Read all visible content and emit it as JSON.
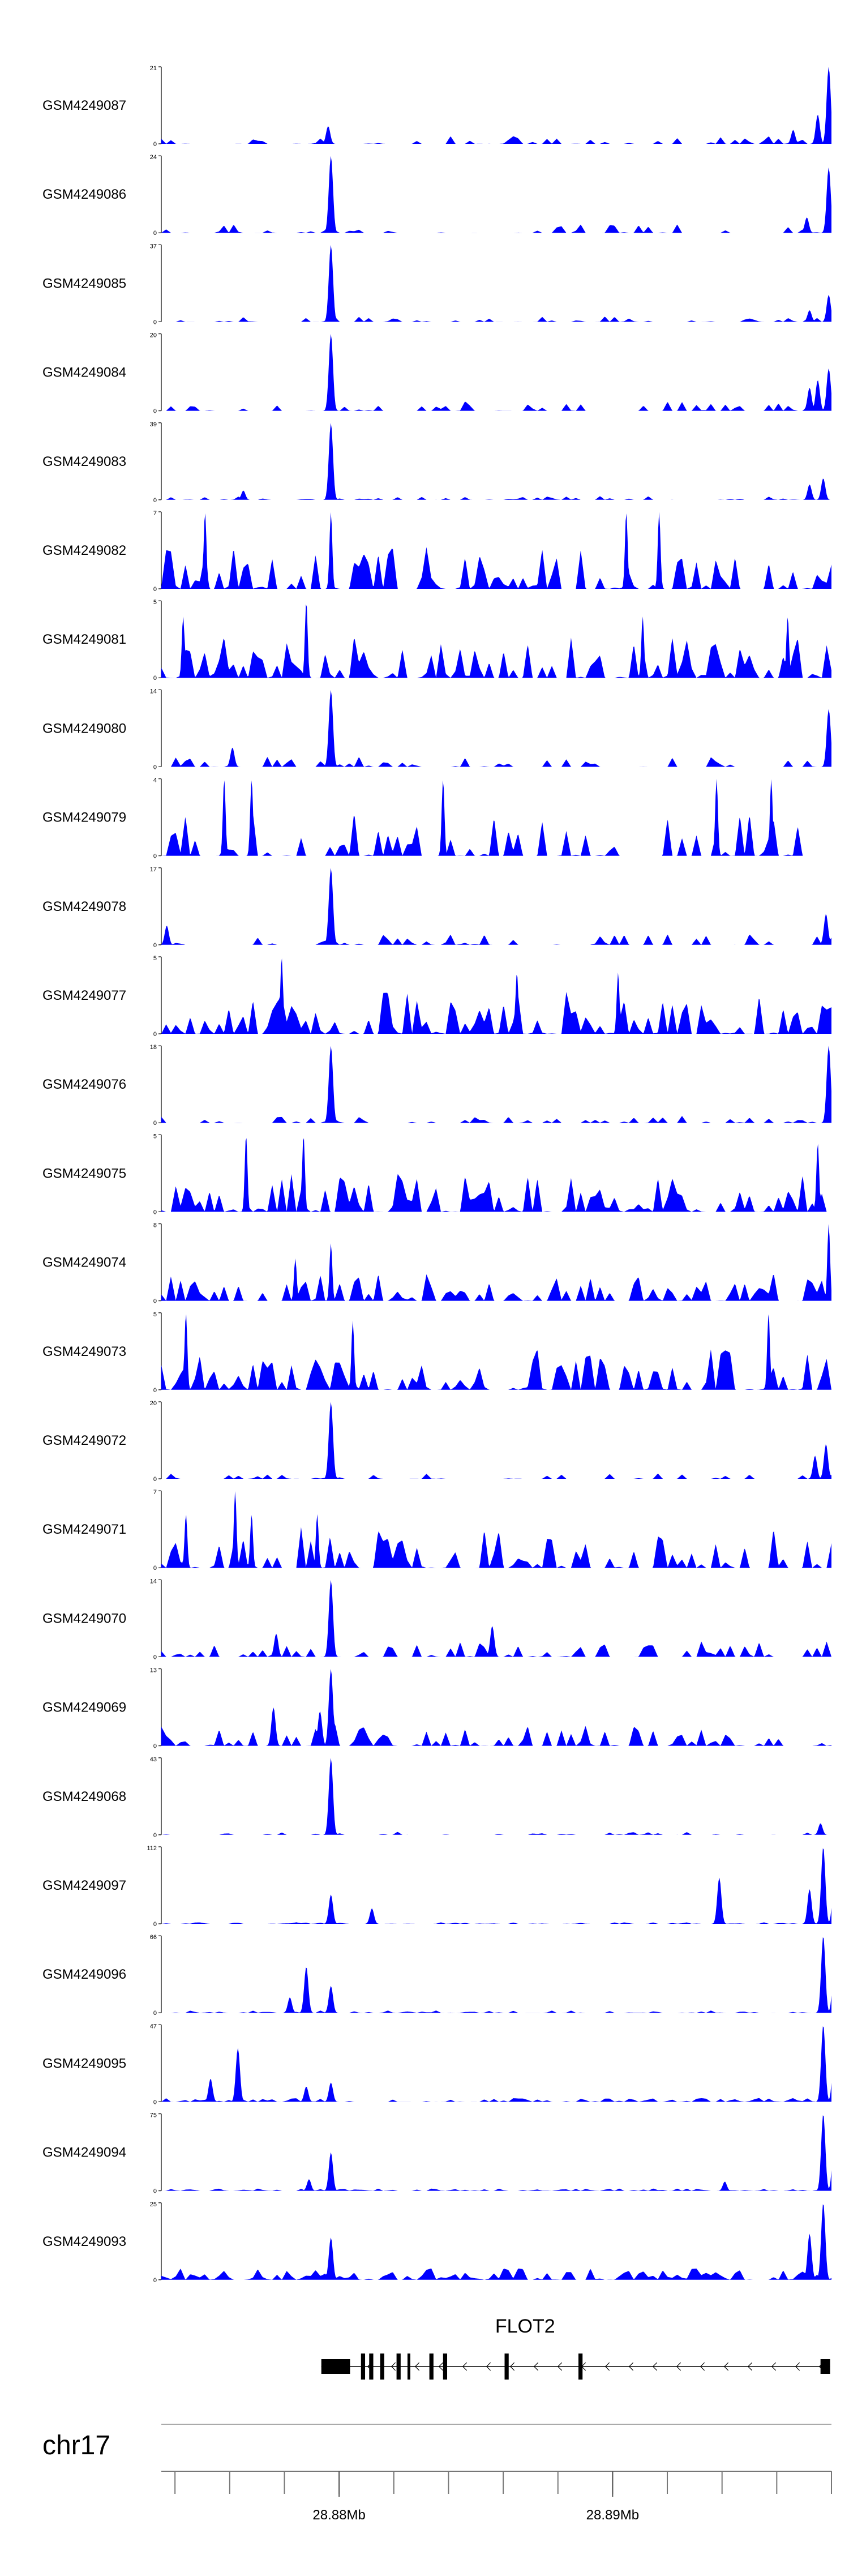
{
  "chart_data": {
    "type": "area",
    "title": "",
    "xlabel": "",
    "ylabel": "",
    "x_tick_labels": [
      "28.88Mb",
      "28.89Mb"
    ],
    "x_tick_values_mb": [
      28.88,
      28.89
    ],
    "x_range_mb": [
      28.8735,
      28.898
    ],
    "chromosome_label": "chr17",
    "fill_color": "#0000ff",
    "gene": {
      "name": "FLOT2",
      "strand": "-",
      "exons_mb": [
        [
          28.87935,
          28.8804
        ],
        [
          28.8808,
          28.88095
        ],
        [
          28.8811,
          28.88125
        ],
        [
          28.8815,
          28.88165
        ],
        [
          28.8821,
          28.88225
        ],
        [
          28.8825,
          28.8826
        ],
        [
          28.8833,
          28.88345
        ],
        [
          28.8838,
          28.88395
        ],
        [
          28.88605,
          28.8862
        ],
        [
          28.88875,
          28.8889
        ],
        [
          28.8976,
          28.89795
        ]
      ]
    },
    "series": [
      {
        "name": "GSM4249087",
        "ymax": 21,
        "ylim": [
          0,
          21
        ],
        "peaks": [
          [
            28.8796,
            0.23
          ],
          [
            28.8966,
            0.18
          ],
          [
            28.8975,
            0.38
          ],
          [
            28.8979,
            1.0
          ]
        ],
        "noise": 0.1,
        "fill": 0.3
      },
      {
        "name": "GSM4249086",
        "ymax": 24,
        "ylim": [
          0,
          24
        ],
        "peaks": [
          [
            28.8797,
            1.0
          ],
          [
            28.8979,
            0.85
          ],
          [
            28.8971,
            0.2
          ]
        ],
        "noise": 0.11,
        "fill": 0.28
      },
      {
        "name": "GSM4249085",
        "ymax": 37,
        "ylim": [
          0,
          37
        ],
        "peaks": [
          [
            28.8797,
            1.0
          ],
          [
            28.8979,
            0.35
          ],
          [
            28.8972,
            0.15
          ]
        ],
        "noise": 0.07,
        "fill": 0.35
      },
      {
        "name": "GSM4249084",
        "ymax": 20,
        "ylim": [
          0,
          20
        ],
        "peaks": [
          [
            28.8797,
            1.0
          ],
          [
            28.8979,
            0.55
          ],
          [
            28.8975,
            0.4
          ],
          [
            28.8972,
            0.3
          ]
        ],
        "noise": 0.13,
        "fill": 0.4
      },
      {
        "name": "GSM4249083",
        "ymax": 39,
        "ylim": [
          0,
          39
        ],
        "peaks": [
          [
            28.8797,
            1.0
          ],
          [
            28.8977,
            0.28
          ],
          [
            28.8972,
            0.2
          ],
          [
            28.8765,
            0.12
          ]
        ],
        "noise": 0.05,
        "fill": 0.35
      },
      {
        "name": "GSM4249082",
        "ymax": 7,
        "ylim": [
          0,
          7
        ],
        "peaks": [
          [
            28.8751,
            1.0
          ],
          [
            28.8797,
            1.0
          ],
          [
            28.8905,
            1.0
          ],
          [
            28.8917,
            1.0
          ]
        ],
        "noise": 0.55,
        "fill": 0.62
      },
      {
        "name": "GSM4249081",
        "ymax": 5,
        "ylim": [
          0,
          5
        ],
        "peaks": [
          [
            28.8788,
            1.0
          ],
          [
            28.8743,
            0.8
          ],
          [
            28.8911,
            0.8
          ],
          [
            28.8964,
            0.8
          ]
        ],
        "noise": 0.55,
        "fill": 0.7
      },
      {
        "name": "GSM4249080",
        "ymax": 14,
        "ylim": [
          0,
          14
        ],
        "peaks": [
          [
            28.8797,
            1.0
          ],
          [
            28.8979,
            0.75
          ],
          [
            28.8761,
            0.25
          ]
        ],
        "noise": 0.14,
        "fill": 0.35
      },
      {
        "name": "GSM4249079",
        "ymax": 4,
        "ylim": [
          0,
          4
        ],
        "peaks": [
          [
            28.8758,
            1.0
          ],
          [
            28.8768,
            1.0
          ],
          [
            28.8838,
            1.0
          ],
          [
            28.8938,
            1.0
          ],
          [
            28.8958,
            1.0
          ]
        ],
        "noise": 0.6,
        "fill": 0.4
      },
      {
        "name": "GSM4249078",
        "ymax": 17,
        "ylim": [
          0,
          17
        ],
        "peaks": [
          [
            28.8797,
            1.0
          ],
          [
            28.8978,
            0.4
          ],
          [
            28.8737,
            0.25
          ]
        ],
        "noise": 0.15,
        "fill": 0.45
      },
      {
        "name": "GSM4249077",
        "ymax": 5,
        "ylim": [
          0,
          5
        ],
        "peaks": [
          [
            28.8779,
            1.0
          ],
          [
            28.8865,
            0.8
          ],
          [
            28.8902,
            0.8
          ],
          [
            28.8982,
            1.0
          ]
        ],
        "noise": 0.55,
        "fill": 0.75
      },
      {
        "name": "GSM4249076",
        "ymax": 18,
        "ylim": [
          0,
          18
        ],
        "peaks": [
          [
            28.8797,
            1.0
          ],
          [
            28.8979,
            1.0
          ]
        ],
        "noise": 0.09,
        "fill": 0.35
      },
      {
        "name": "GSM4249075",
        "ymax": 5,
        "ylim": [
          0,
          5
        ],
        "peaks": [
          [
            28.8766,
            1.0
          ],
          [
            28.8787,
            1.0
          ],
          [
            28.8975,
            0.9
          ]
        ],
        "noise": 0.55,
        "fill": 0.7
      },
      {
        "name": "GSM4249074",
        "ymax": 8,
        "ylim": [
          0,
          8
        ],
        "peaks": [
          [
            28.8979,
            1.0
          ],
          [
            28.8797,
            0.75
          ],
          [
            28.8784,
            0.55
          ]
        ],
        "noise": 0.38,
        "fill": 0.55
      },
      {
        "name": "GSM4249073",
        "ymax": 5,
        "ylim": [
          0,
          5
        ],
        "peaks": [
          [
            28.8744,
            1.0
          ],
          [
            28.8805,
            0.9
          ],
          [
            28.8957,
            1.0
          ]
        ],
        "noise": 0.55,
        "fill": 0.7
      },
      {
        "name": "GSM4249072",
        "ymax": 20,
        "ylim": [
          0,
          20
        ],
        "peaks": [
          [
            28.8797,
            1.0
          ],
          [
            28.8978,
            0.45
          ],
          [
            28.8974,
            0.3
          ]
        ],
        "noise": 0.08,
        "fill": 0.3
      },
      {
        "name": "GSM4249071",
        "ymax": 7,
        "ylim": [
          0,
          7
        ],
        "peaks": [
          [
            28.8762,
            1.0
          ],
          [
            28.8744,
            0.7
          ],
          [
            28.8768,
            0.7
          ],
          [
            28.8792,
            0.7
          ]
        ],
        "noise": 0.55,
        "fill": 0.55
      },
      {
        "name": "GSM4249070",
        "ymax": 14,
        "ylim": [
          0,
          14
        ],
        "peaks": [
          [
            28.8797,
            1.0
          ],
          [
            28.8856,
            0.4
          ],
          [
            28.8777,
            0.3
          ]
        ],
        "noise": 0.2,
        "fill": 0.45
      },
      {
        "name": "GSM4249069",
        "ymax": 13,
        "ylim": [
          0,
          13
        ],
        "peaks": [
          [
            28.8797,
            1.0
          ],
          [
            28.8776,
            0.5
          ],
          [
            28.8793,
            0.45
          ]
        ],
        "noise": 0.3,
        "fill": 0.55
      },
      {
        "name": "GSM4249068",
        "ymax": 43,
        "ylim": [
          0,
          43
        ],
        "peaks": [
          [
            28.8797,
            1.0
          ],
          [
            28.8976,
            0.15
          ]
        ],
        "noise": 0.05,
        "fill": 0.3
      },
      {
        "name": "GSM4249097",
        "ymax": 112,
        "ylim": [
          0,
          112
        ],
        "peaks": [
          [
            28.8977,
            1.0
          ],
          [
            28.8981,
            0.5
          ],
          [
            28.8984,
            0.45
          ],
          [
            28.8972,
            0.45
          ],
          [
            28.8939,
            0.6
          ],
          [
            28.8797,
            0.38
          ],
          [
            28.8812,
            0.2
          ]
        ],
        "noise": 0.02,
        "fill": 0.6
      },
      {
        "name": "GSM4249096",
        "ymax": 66,
        "ylim": [
          0,
          66
        ],
        "peaks": [
          [
            28.8977,
            1.0
          ],
          [
            28.8981,
            0.55
          ],
          [
            28.8984,
            0.3
          ],
          [
            28.8788,
            0.6
          ],
          [
            28.8797,
            0.35
          ],
          [
            28.8782,
            0.2
          ]
        ],
        "noise": 0.03,
        "fill": 0.65
      },
      {
        "name": "GSM4249095",
        "ymax": 47,
        "ylim": [
          0,
          47
        ],
        "peaks": [
          [
            28.8977,
            1.0
          ],
          [
            28.8981,
            0.6
          ],
          [
            28.8985,
            0.35
          ],
          [
            28.8763,
            0.7
          ],
          [
            28.8753,
            0.3
          ],
          [
            28.8797,
            0.25
          ],
          [
            28.8788,
            0.2
          ]
        ],
        "noise": 0.05,
        "fill": 0.7
      },
      {
        "name": "GSM4249094",
        "ymax": 75,
        "ylim": [
          0,
          75
        ],
        "peaks": [
          [
            28.8977,
            1.0
          ],
          [
            28.8981,
            0.65
          ],
          [
            28.8985,
            0.5
          ],
          [
            28.8797,
            0.5
          ],
          [
            28.8789,
            0.15
          ],
          [
            28.8941,
            0.12
          ]
        ],
        "noise": 0.03,
        "fill": 0.6
      },
      {
        "name": "GSM4249093",
        "ymax": 25,
        "ylim": [
          0,
          25
        ],
        "peaks": [
          [
            28.8977,
            1.0
          ],
          [
            28.8982,
            0.85
          ],
          [
            28.8985,
            0.7
          ],
          [
            28.8972,
            0.6
          ],
          [
            28.8797,
            0.55
          ]
        ],
        "noise": 0.15,
        "fill": 0.9
      }
    ]
  }
}
